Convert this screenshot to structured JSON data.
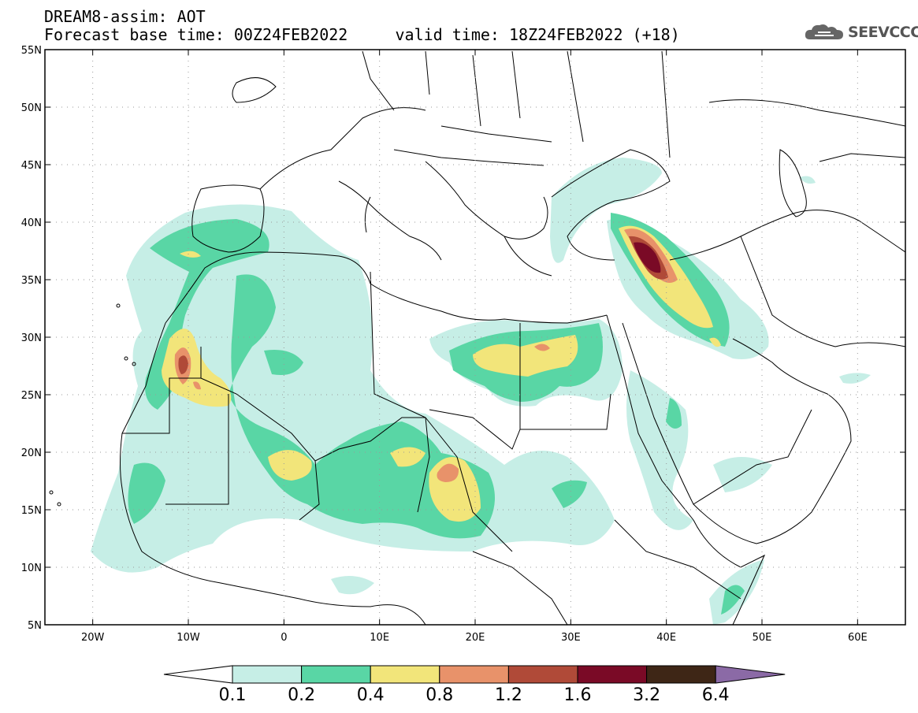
{
  "header": {
    "line1": "DREAM8-assim: AOT",
    "line2": "Forecast base time: 00Z24FEB2022     valid time: 18Z24FEB2022 (+18)"
  },
  "brand": {
    "name": "SEEVCCC",
    "icon": "cloud-logo-icon"
  },
  "map": {
    "lon_range": [
      -25,
      65
    ],
    "lat_range": [
      5,
      55
    ],
    "lon_ticks": [
      {
        "lon": -20,
        "label": "20W"
      },
      {
        "lon": -10,
        "label": "10W"
      },
      {
        "lon": 0,
        "label": "0"
      },
      {
        "lon": 10,
        "label": "10E"
      },
      {
        "lon": 20,
        "label": "20E"
      },
      {
        "lon": 30,
        "label": "30E"
      },
      {
        "lon": 40,
        "label": "40E"
      },
      {
        "lon": 50,
        "label": "50E"
      },
      {
        "lon": 60,
        "label": "60E"
      }
    ],
    "lat_ticks": [
      {
        "lat": 55,
        "label": "55N"
      },
      {
        "lat": 50,
        "label": "50N"
      },
      {
        "lat": 45,
        "label": "45N"
      },
      {
        "lat": 40,
        "label": "40N"
      },
      {
        "lat": 35,
        "label": "35N"
      },
      {
        "lat": 30,
        "label": "30N"
      },
      {
        "lat": 25,
        "label": "25N"
      },
      {
        "lat": 20,
        "label": "20N"
      },
      {
        "lat": 15,
        "label": "15N"
      },
      {
        "lat": 10,
        "label": "10N"
      },
      {
        "lat": 5,
        "label": "5N"
      }
    ],
    "grid": "dotted"
  },
  "colorbar": {
    "labels": [
      "0.1",
      "0.2",
      "0.4",
      "0.8",
      "1.2",
      "1.6",
      "3.2",
      "6.4"
    ],
    "colors": [
      "#ffffff",
      "#c6eee6",
      "#59d6a5",
      "#f2e57a",
      "#e8926a",
      "#b04a38",
      "#7a0a26",
      "#3e2616",
      "#8b6aa6"
    ]
  }
}
